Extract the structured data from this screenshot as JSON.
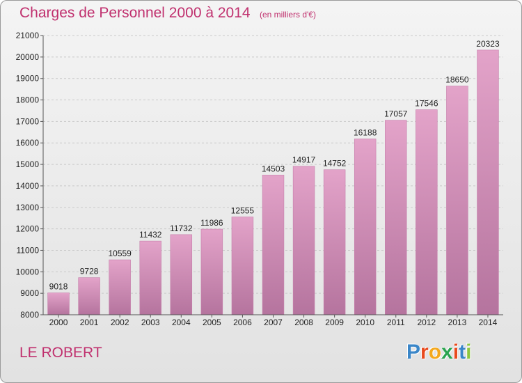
{
  "header": {
    "title": "Charges de Personnel 2000 à 2014",
    "subtitle": "(en milliers d'€)"
  },
  "footer": {
    "commune": "LE ROBERT",
    "logo": [
      "P",
      "r",
      "o",
      "x",
      "i",
      "t",
      "i"
    ],
    "logo_colors": [
      "#3a86c8",
      "#e8491d",
      "#f4a81d",
      "#2aa44f",
      "#e8491d",
      "#3a86c8",
      "#8dc63f"
    ]
  },
  "chart_data": {
    "type": "bar",
    "title": "Charges de Personnel 2000 à 2014",
    "subtitle": "(en milliers d'€)",
    "categories": [
      "2000",
      "2001",
      "2002",
      "2003",
      "2004",
      "2005",
      "2006",
      "2007",
      "2008",
      "2009",
      "2010",
      "2011",
      "2012",
      "2013",
      "2014"
    ],
    "values": [
      9018,
      9728,
      10559,
      11432,
      11732,
      11986,
      12555,
      14503,
      14917,
      14752,
      16188,
      17057,
      17546,
      18650,
      20323
    ],
    "ylim": [
      8000,
      21000
    ],
    "yticks": [
      8000,
      9000,
      10000,
      11000,
      12000,
      13000,
      14000,
      15000,
      16000,
      17000,
      18000,
      19000,
      20000,
      21000
    ],
    "grid": true,
    "bar_color_top": "#e3a3c9",
    "bar_color_bottom": "#b5749e"
  }
}
